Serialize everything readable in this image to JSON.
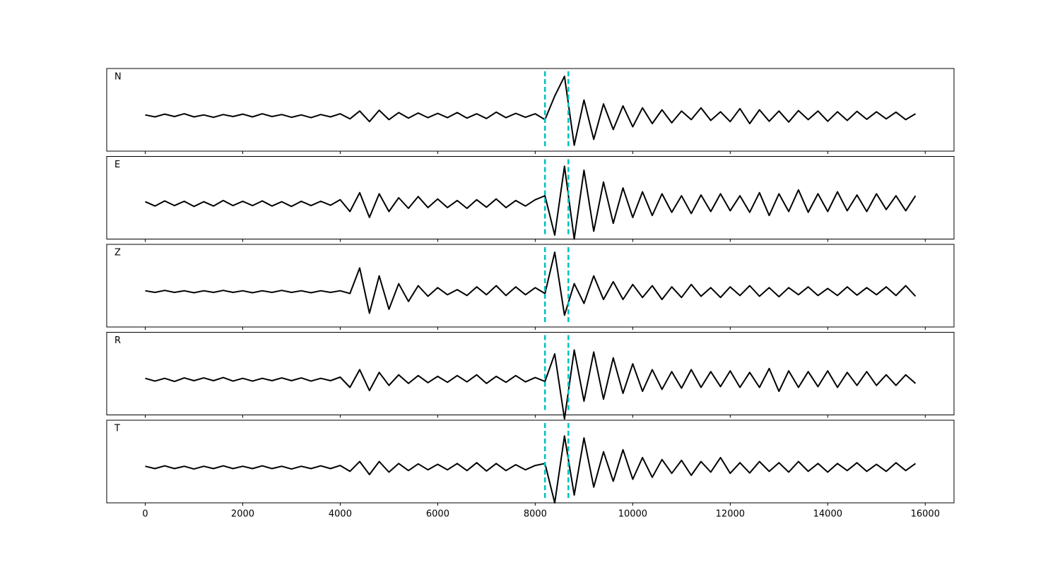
{
  "chart_data": {
    "type": "line",
    "x": [
      0,
      200,
      400,
      600,
      800,
      1000,
      1200,
      1400,
      1600,
      1800,
      2000,
      2200,
      2400,
      2600,
      2800,
      3000,
      3200,
      3400,
      3600,
      3800,
      4000,
      4200,
      4400,
      4600,
      4800,
      5000,
      5200,
      5400,
      5600,
      5800,
      6000,
      6200,
      6400,
      6600,
      6800,
      7000,
      7200,
      7400,
      7600,
      7800,
      8000,
      8200,
      8400,
      8600,
      8800,
      9000,
      9200,
      9400,
      9600,
      9800,
      10000,
      10200,
      10400,
      10600,
      10800,
      11000,
      11200,
      11400,
      11600,
      11800,
      12000,
      12200,
      12400,
      12600,
      12800,
      13000,
      13200,
      13400,
      13600,
      13800,
      14000,
      14200,
      14400,
      14600,
      14800,
      15000,
      15200,
      15400,
      15600,
      15800
    ],
    "series": [
      {
        "name": "N",
        "color": "#000000",
        "values": [
          0.02,
          -0.03,
          0.04,
          -0.02,
          0.05,
          -0.03,
          0.02,
          -0.04,
          0.03,
          -0.02,
          0.04,
          -0.03,
          0.05,
          -0.02,
          0.03,
          -0.04,
          0.02,
          -0.05,
          0.03,
          -0.03,
          0.05,
          -0.08,
          0.12,
          -0.15,
          0.14,
          -0.1,
          0.08,
          -0.06,
          0.07,
          -0.05,
          0.06,
          -0.05,
          0.08,
          -0.06,
          0.05,
          -0.07,
          0.09,
          -0.05,
          0.06,
          -0.04,
          0.05,
          -0.1,
          0.5,
          1.0,
          -0.75,
          0.4,
          -0.6,
          0.3,
          -0.35,
          0.25,
          -0.28,
          0.2,
          -0.2,
          0.15,
          -0.18,
          0.12,
          -0.1,
          0.2,
          -0.12,
          0.1,
          -0.15,
          0.18,
          -0.2,
          0.15,
          -0.14,
          0.12,
          -0.16,
          0.13,
          -0.1,
          0.12,
          -0.14,
          0.1,
          -0.12,
          0.11,
          -0.09,
          0.1,
          -0.08,
          0.09,
          -0.1,
          0.05
        ]
      },
      {
        "name": "E",
        "color": "#000000",
        "values": [
          0.05,
          -0.06,
          0.07,
          -0.05,
          0.06,
          -0.07,
          0.05,
          -0.06,
          0.08,
          -0.05,
          0.06,
          -0.05,
          0.07,
          -0.06,
          0.05,
          -0.07,
          0.06,
          -0.05,
          0.06,
          -0.04,
          0.1,
          -0.2,
          0.28,
          -0.35,
          0.25,
          -0.2,
          0.15,
          -0.12,
          0.18,
          -0.1,
          0.12,
          -0.1,
          0.08,
          -0.12,
          0.1,
          -0.09,
          0.12,
          -0.1,
          0.08,
          -0.06,
          0.1,
          0.2,
          -0.8,
          0.95,
          -0.9,
          0.85,
          -0.7,
          0.55,
          -0.5,
          0.4,
          -0.35,
          0.3,
          -0.3,
          0.25,
          -0.22,
          0.2,
          -0.25,
          0.22,
          -0.2,
          0.25,
          -0.18,
          0.2,
          -0.22,
          0.28,
          -0.3,
          0.25,
          -0.2,
          0.35,
          -0.22,
          0.25,
          -0.2,
          0.3,
          -0.18,
          0.22,
          -0.2,
          0.25,
          -0.15,
          0.2,
          -0.18,
          0.2
        ]
      },
      {
        "name": "Z",
        "color": "#000000",
        "values": [
          0.02,
          -0.02,
          0.03,
          -0.02,
          0.02,
          -0.03,
          0.02,
          -0.02,
          0.03,
          -0.02,
          0.02,
          -0.03,
          0.02,
          -0.02,
          0.03,
          -0.02,
          0.02,
          -0.03,
          0.02,
          -0.02,
          0.02,
          -0.05,
          0.6,
          -0.55,
          0.4,
          -0.45,
          0.2,
          -0.25,
          0.15,
          -0.12,
          0.1,
          -0.08,
          0.05,
          -0.1,
          0.12,
          -0.08,
          0.15,
          -0.1,
          0.12,
          -0.08,
          0.1,
          -0.05,
          1.0,
          -0.6,
          0.2,
          -0.3,
          0.4,
          -0.2,
          0.25,
          -0.2,
          0.18,
          -0.15,
          0.15,
          -0.2,
          0.12,
          -0.15,
          0.18,
          -0.12,
          0.1,
          -0.15,
          0.12,
          -0.1,
          0.15,
          -0.12,
          0.1,
          -0.13,
          0.1,
          -0.08,
          0.12,
          -0.1,
          0.08,
          -0.1,
          0.12,
          -0.09,
          0.1,
          -0.08,
          0.12,
          -0.1,
          0.15,
          -0.12
        ]
      },
      {
        "name": "R",
        "color": "#000000",
        "values": [
          0.03,
          -0.04,
          0.03,
          -0.05,
          0.04,
          -0.03,
          0.04,
          -0.03,
          0.05,
          -0.04,
          0.03,
          -0.04,
          0.03,
          -0.03,
          0.04,
          -0.03,
          0.04,
          -0.04,
          0.03,
          -0.03,
          0.06,
          -0.2,
          0.25,
          -0.28,
          0.18,
          -0.15,
          0.12,
          -0.1,
          0.1,
          -0.08,
          0.08,
          -0.07,
          0.1,
          -0.06,
          0.12,
          -0.1,
          0.08,
          -0.07,
          0.1,
          -0.06,
          0.05,
          -0.05,
          0.65,
          -1.0,
          0.75,
          -0.55,
          0.7,
          -0.5,
          0.55,
          -0.35,
          0.4,
          -0.3,
          0.25,
          -0.25,
          0.2,
          -0.22,
          0.25,
          -0.2,
          0.2,
          -0.18,
          0.22,
          -0.2,
          0.18,
          -0.2,
          0.28,
          -0.3,
          0.22,
          -0.2,
          0.2,
          -0.18,
          0.22,
          -0.2,
          0.18,
          -0.15,
          0.2,
          -0.15,
          0.12,
          -0.15,
          0.12,
          -0.1
        ]
      },
      {
        "name": "T",
        "color": "#000000",
        "values": [
          0.03,
          -0.03,
          0.04,
          -0.03,
          0.03,
          -0.04,
          0.03,
          -0.03,
          0.04,
          -0.03,
          0.03,
          -0.03,
          0.04,
          -0.03,
          0.03,
          -0.04,
          0.03,
          -0.03,
          0.04,
          -0.03,
          0.05,
          -0.1,
          0.15,
          -0.18,
          0.15,
          -0.12,
          0.1,
          -0.08,
          0.09,
          -0.06,
          0.08,
          -0.06,
          0.1,
          -0.08,
          0.12,
          -0.09,
          0.1,
          -0.08,
          0.07,
          -0.06,
          0.05,
          0.1,
          -0.9,
          0.8,
          -0.7,
          0.75,
          -0.5,
          0.4,
          -0.35,
          0.45,
          -0.3,
          0.25,
          -0.25,
          0.2,
          -0.15,
          0.18,
          -0.2,
          0.15,
          -0.12,
          0.25,
          -0.15,
          0.12,
          -0.14,
          0.15,
          -0.1,
          0.12,
          -0.12,
          0.15,
          -0.1,
          0.1,
          -0.12,
          0.1,
          -0.08,
          0.12,
          -0.1,
          0.08,
          -0.1,
          0.12,
          -0.08,
          0.1
        ]
      }
    ],
    "vlines": [
      8200,
      8680
    ],
    "vline_color": "#00bfbf",
    "xlim": [
      -790,
      16590
    ],
    "xticks": [
      0,
      2000,
      4000,
      6000,
      8000,
      10000,
      12000,
      14000,
      16000
    ],
    "ylim": [
      -0.9,
      1.2
    ]
  }
}
